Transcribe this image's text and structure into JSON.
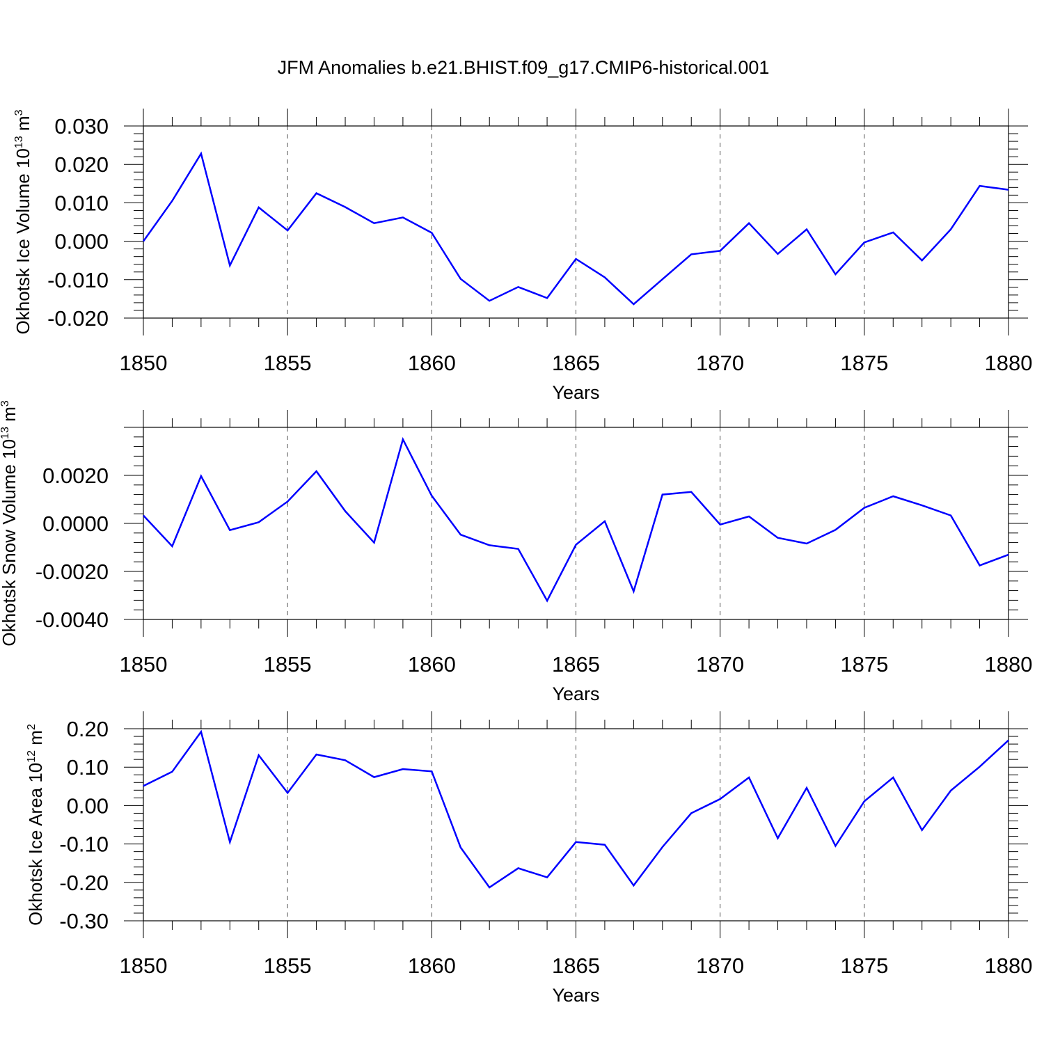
{
  "title": "JFM Anomalies b.e21.BHIST.f09_g17.CMIP6-historical.001",
  "colors": {
    "line": "#0000ff",
    "axis": "#000000",
    "grid": "#555555"
  },
  "chart_data": [
    {
      "type": "line",
      "ylabel": {
        "main": "Okhotsk Ice Volume 10",
        "exp": "13",
        "unit": " m",
        "unitexp": "3"
      },
      "xlabel": "Years",
      "xlim": [
        1850,
        1880
      ],
      "ylim": [
        -0.02,
        0.03
      ],
      "xticks": [
        1850,
        1855,
        1860,
        1865,
        1870,
        1875,
        1880
      ],
      "xtick_labels": [
        "1850",
        "1855",
        "1860",
        "1865",
        "1870",
        "1875",
        "1880"
      ],
      "yticks": [
        -0.02,
        -0.01,
        0.0,
        0.01,
        0.02,
        0.03
      ],
      "ytick_labels": [
        "-0.020",
        "-0.010",
        "0.000",
        "0.010",
        "0.020",
        "0.030"
      ],
      "grid": "dashed vertical at major x ticks",
      "x": [
        1850,
        1851,
        1852,
        1853,
        1854,
        1855,
        1856,
        1857,
        1858,
        1859,
        1860,
        1861,
        1862,
        1863,
        1864,
        1865,
        1866,
        1867,
        1868,
        1869,
        1870,
        1871,
        1872,
        1873,
        1874,
        1875,
        1876,
        1877,
        1878,
        1879,
        1880
      ],
      "values": [
        0.0,
        0.0105,
        0.0228,
        -0.0063,
        0.0088,
        0.0028,
        0.0125,
        0.0089,
        0.0047,
        0.0062,
        0.0022,
        -0.0098,
        -0.0155,
        -0.0119,
        -0.0148,
        -0.0046,
        -0.0094,
        -0.0164,
        -0.0099,
        -0.0034,
        -0.0025,
        0.0047,
        -0.0033,
        0.0031,
        -0.0086,
        -0.0003,
        0.0023,
        -0.005,
        0.0031,
        0.0144,
        0.0134
      ]
    },
    {
      "type": "line",
      "ylabel": {
        "main": "Okhotsk Snow Volume 10",
        "exp": "13",
        "unit": " m",
        "unitexp": "3"
      },
      "xlabel": "Years",
      "xlim": [
        1850,
        1880
      ],
      "ylim": [
        -0.004,
        0.004
      ],
      "xticks": [
        1850,
        1855,
        1860,
        1865,
        1870,
        1875,
        1880
      ],
      "xtick_labels": [
        "1850",
        "1855",
        "1860",
        "1865",
        "1870",
        "1875",
        "1880"
      ],
      "yticks": [
        -0.004,
        -0.002,
        0.0,
        0.002
      ],
      "ytick_labels": [
        "-0.0040",
        "-0.0020",
        "0.0000",
        "0.0020"
      ],
      "grid": "dashed vertical at major x ticks",
      "x": [
        1850,
        1851,
        1852,
        1853,
        1854,
        1855,
        1856,
        1857,
        1858,
        1859,
        1860,
        1861,
        1862,
        1863,
        1864,
        1865,
        1866,
        1867,
        1868,
        1869,
        1870,
        1871,
        1872,
        1873,
        1874,
        1875,
        1876,
        1877,
        1878,
        1879,
        1880
      ],
      "values": [
        0.00033,
        -0.00095,
        0.00197,
        -0.00028,
        5e-05,
        0.00091,
        0.00217,
        0.00051,
        -0.0008,
        0.0035,
        0.00115,
        -0.00047,
        -0.00091,
        -0.00106,
        -0.00322,
        -0.00089,
        9e-05,
        -0.00283,
        0.0012,
        0.00131,
        -5e-05,
        0.00029,
        -0.0006,
        -0.00084,
        -0.00027,
        0.00065,
        0.00113,
        0.00075,
        0.00033,
        -0.00175,
        -0.0013
      ]
    },
    {
      "type": "line",
      "ylabel": {
        "main": "Okhotsk Ice Area 10",
        "exp": "12",
        "unit": " m",
        "unitexp": "2"
      },
      "xlabel": "Years",
      "xlim": [
        1850,
        1880
      ],
      "ylim": [
        -0.3,
        0.2
      ],
      "xticks": [
        1850,
        1855,
        1860,
        1865,
        1870,
        1875,
        1880
      ],
      "xtick_labels": [
        "1850",
        "1855",
        "1860",
        "1865",
        "1870",
        "1875",
        "1880"
      ],
      "yticks": [
        -0.3,
        -0.2,
        -0.1,
        0.0,
        0.1,
        0.2
      ],
      "ytick_labels": [
        "-0.30",
        "-0.20",
        "-0.10",
        "0.00",
        "0.10",
        "0.20"
      ],
      "grid": "dashed vertical at major x ticks",
      "x": [
        1850,
        1851,
        1852,
        1853,
        1854,
        1855,
        1856,
        1857,
        1858,
        1859,
        1860,
        1861,
        1862,
        1863,
        1864,
        1865,
        1866,
        1867,
        1868,
        1869,
        1870,
        1871,
        1872,
        1873,
        1874,
        1875,
        1876,
        1877,
        1878,
        1879,
        1880
      ],
      "values": [
        0.051,
        0.088,
        0.192,
        -0.095,
        0.131,
        0.033,
        0.133,
        0.118,
        0.074,
        0.095,
        0.089,
        -0.109,
        -0.213,
        -0.163,
        -0.187,
        -0.095,
        -0.102,
        -0.208,
        -0.108,
        -0.02,
        0.017,
        0.073,
        -0.085,
        0.046,
        -0.105,
        0.011,
        0.073,
        -0.064,
        0.039,
        0.101,
        0.17
      ]
    }
  ]
}
